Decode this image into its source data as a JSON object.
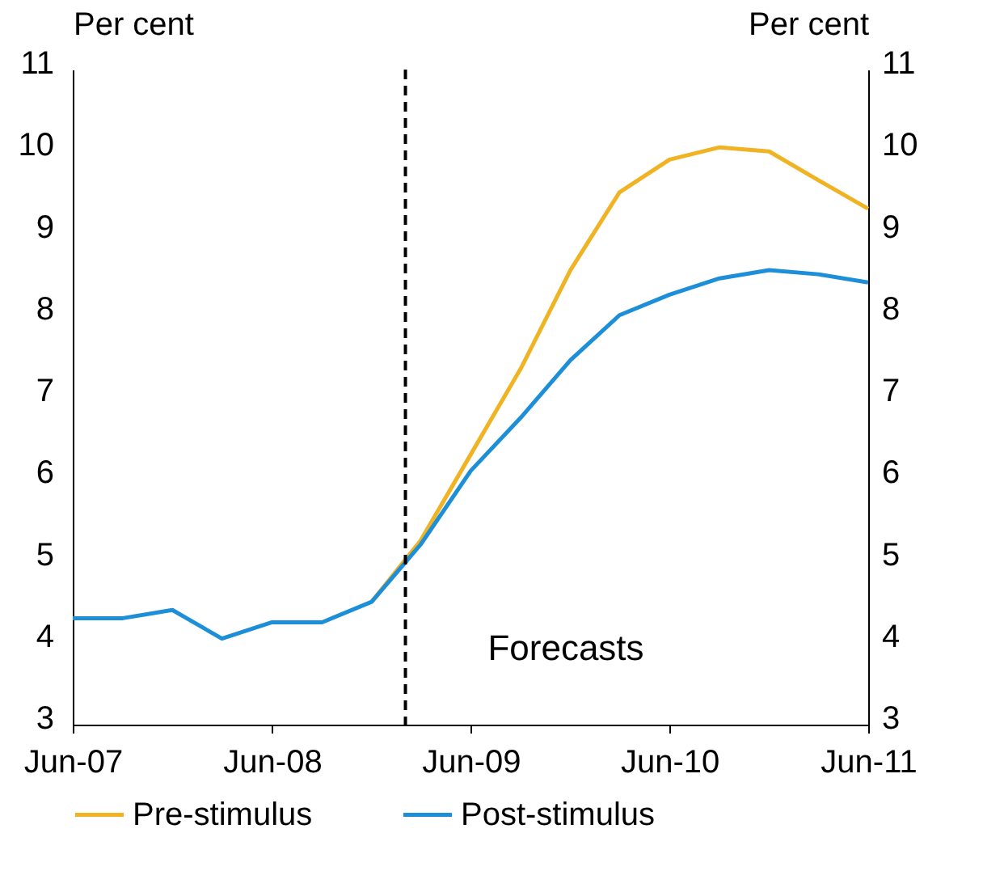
{
  "chart_data": {
    "type": "line",
    "ylabel": "Per cent",
    "y2label": "Per cent",
    "x": [
      "2007-06",
      "2007-09",
      "2007-12",
      "2008-03",
      "2008-06",
      "2008-09",
      "2008-12",
      "2009-03",
      "2009-06",
      "2009-09",
      "2009-12",
      "2010-03",
      "2010-06",
      "2010-09",
      "2010-12",
      "2011-03",
      "2011-06"
    ],
    "series": [
      {
        "name": "Pre-stimulus",
        "color": "#f0b323",
        "values": [
          null,
          null,
          null,
          null,
          null,
          null,
          4.5,
          5.25,
          6.3,
          7.35,
          8.55,
          9.5,
          9.9,
          10.05,
          10.0,
          9.65,
          9.3
        ]
      },
      {
        "name": "Post-stimulus",
        "color": "#1c8fd8",
        "values": [
          4.3,
          4.3,
          4.4,
          4.05,
          4.25,
          4.25,
          4.5,
          5.2,
          6.1,
          6.75,
          7.45,
          8.0,
          8.25,
          8.45,
          8.55,
          8.5,
          8.4
        ]
      }
    ],
    "xlim": [
      "2007-06",
      "2011-06"
    ],
    "xticks": [
      {
        "value": "2007-06",
        "label": "Jun-07"
      },
      {
        "value": "2008-06",
        "label": "Jun-08"
      },
      {
        "value": "2009-06",
        "label": "Jun-09"
      },
      {
        "value": "2010-06",
        "label": "Jun-10"
      },
      {
        "value": "2011-06",
        "label": "Jun-11"
      }
    ],
    "ylim": [
      3,
      11
    ],
    "yticks": [
      3,
      4,
      5,
      6,
      7,
      8,
      9,
      10,
      11
    ],
    "y2lim": [
      3,
      11
    ],
    "y2ticks": [
      3,
      4,
      5,
      6,
      7,
      8,
      9,
      10,
      11
    ],
    "ref_lines": [
      {
        "axis": "x",
        "value": "2009-02",
        "color": "#000000",
        "line_style": "dashed"
      }
    ],
    "annotations": [
      "Forecasts"
    ],
    "grid": false,
    "legend": "bottom",
    "marker": "none",
    "line_style": "solid"
  }
}
